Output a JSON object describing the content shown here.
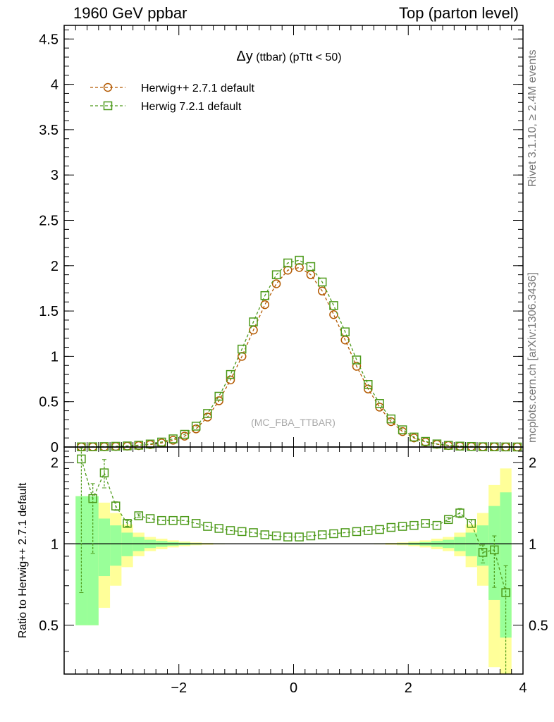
{
  "header": {
    "left": "1960 GeV ppbar",
    "right": "Top (parton level)"
  },
  "side_labels": {
    "rivet": "Rivet 3.1.10, ≥ 2.4M events",
    "mcplots": "mcplots.cern.ch [arXiv:1306.3436]"
  },
  "plot": {
    "title_symbol": "Δy",
    "title_rest": " (ttbar) (pTtt < 50)",
    "watermark": "(MC_FBA_TTBAR)",
    "ratio_ylabel": "Ratio to Herwig++ 2.7.1 default"
  },
  "colors": {
    "herwigpp": "#b35900",
    "herwig7": "#4d9a1a",
    "band_outer": "#ffff99",
    "band_inner": "#99ff99"
  },
  "chart_data": [
    {
      "type": "line",
      "title": "Δy (ttbar) (pTtt < 50)",
      "xlim": [
        -4,
        4
      ],
      "ylim": [
        0,
        4.65
      ],
      "yticks": [
        "0",
        "0.5",
        "1",
        "1.5",
        "2",
        "2.5",
        "3",
        "3.5",
        "4",
        "4.5"
      ],
      "legend_position": "top-left",
      "x": [
        -3.7,
        -3.5,
        -3.3,
        -3.1,
        -2.9,
        -2.7,
        -2.5,
        -2.3,
        -2.1,
        -1.9,
        -1.7,
        -1.5,
        -1.3,
        -1.1,
        -0.9,
        -0.7,
        -0.5,
        -0.3,
        -0.1,
        0.1,
        0.3,
        0.5,
        0.7,
        0.9,
        1.1,
        1.3,
        1.5,
        1.7,
        1.9,
        2.1,
        2.3,
        2.5,
        2.7,
        2.9,
        3.1,
        3.3,
        3.5,
        3.7,
        3.9
      ],
      "series": [
        {
          "name": "Herwig++ 2.7.1 default",
          "marker": "circle",
          "values": [
            0.001,
            0.002,
            0.003,
            0.006,
            0.01,
            0.016,
            0.027,
            0.045,
            0.075,
            0.12,
            0.2,
            0.33,
            0.51,
            0.74,
            1.0,
            1.29,
            1.57,
            1.8,
            1.95,
            1.98,
            1.9,
            1.72,
            1.46,
            1.18,
            0.89,
            0.64,
            0.44,
            0.28,
            0.17,
            0.1,
            0.055,
            0.03,
            0.017,
            0.009,
            0.005,
            0.003,
            0.002,
            0.001,
            0.0005
          ]
        },
        {
          "name": "Herwig 7.2.1 default",
          "marker": "square",
          "values": [
            0.002,
            0.003,
            0.005,
            0.008,
            0.012,
            0.02,
            0.033,
            0.055,
            0.09,
            0.14,
            0.23,
            0.37,
            0.56,
            0.8,
            1.08,
            1.38,
            1.67,
            1.9,
            2.03,
            2.06,
            1.99,
            1.82,
            1.56,
            1.27,
            0.96,
            0.69,
            0.48,
            0.31,
            0.19,
            0.11,
            0.062,
            0.034,
            0.019,
            0.01,
            0.006,
            0.003,
            0.002,
            0.001,
            0.0005
          ]
        }
      ]
    },
    {
      "type": "line",
      "ylabel": "Ratio to Herwig++ 2.7.1 default",
      "xlim": [
        -4,
        4
      ],
      "ylim": [
        0.33,
        2.28
      ],
      "xticks": [
        "−2",
        "0",
        "2",
        "4"
      ],
      "yticks": [
        "0.5",
        "1",
        "2"
      ],
      "x": [
        -3.7,
        -3.5,
        -3.3,
        -3.1,
        -2.9,
        -2.7,
        -2.5,
        -2.3,
        -2.1,
        -1.9,
        -1.7,
        -1.5,
        -1.3,
        -1.1,
        -0.9,
        -0.7,
        -0.5,
        -0.3,
        -0.1,
        0.1,
        0.3,
        0.5,
        0.7,
        0.9,
        1.1,
        1.3,
        1.5,
        1.7,
        1.9,
        2.1,
        2.3,
        2.5,
        2.7,
        2.9,
        3.1,
        3.3,
        3.5,
        3.7
      ],
      "series": [
        {
          "name": "Herwig 7.2.1 default",
          "marker": "square",
          "values": [
            2.06,
            1.47,
            1.83,
            1.38,
            1.19,
            1.27,
            1.24,
            1.22,
            1.22,
            1.22,
            1.19,
            1.16,
            1.14,
            1.12,
            1.11,
            1.1,
            1.08,
            1.07,
            1.06,
            1.06,
            1.07,
            1.08,
            1.09,
            1.1,
            1.11,
            1.12,
            1.13,
            1.15,
            1.16,
            1.17,
            1.19,
            1.17,
            1.23,
            1.3,
            1.19,
            0.93,
            0.95,
            0.66
          ],
          "err_up": [
            0.2,
            0.2,
            0.22,
            0.05,
            0.03,
            0.02,
            0.01,
            0.01,
            0.01,
            0.01,
            0.01,
            0.01,
            0.01,
            0.01,
            0.01,
            0.01,
            0.01,
            0.01,
            0.01,
            0.01,
            0.01,
            0.01,
            0.01,
            0.01,
            0.01,
            0.01,
            0.01,
            0.01,
            0.01,
            0.01,
            0.01,
            0.01,
            0.02,
            0.05,
            0.04,
            0.06,
            0.12,
            0.17
          ],
          "err_dn": [
            1.4,
            0.55,
            0.22,
            0.05,
            0.03,
            0.02,
            0.01,
            0.01,
            0.01,
            0.01,
            0.01,
            0.01,
            0.01,
            0.01,
            0.01,
            0.01,
            0.01,
            0.01,
            0.01,
            0.01,
            0.01,
            0.01,
            0.01,
            0.01,
            0.01,
            0.01,
            0.01,
            0.01,
            0.01,
            0.01,
            0.01,
            0.01,
            0.02,
            0.05,
            0.04,
            0.08,
            0.26,
            0.35
          ]
        }
      ],
      "band_edges": [
        -3.8,
        -3.6,
        -3.4,
        -3.2,
        -3.0,
        -2.8,
        -2.6,
        -2.4,
        -2.2,
        -2.0,
        -1.8,
        -1.6,
        -1.4,
        -1.2,
        -1.0,
        1.0,
        1.2,
        1.4,
        1.6,
        1.8,
        2.0,
        2.2,
        2.4,
        2.6,
        2.8,
        3.0,
        3.2,
        3.4,
        3.6,
        3.8
      ],
      "band_outer": [
        0.5,
        0.5,
        0.42,
        0.3,
        0.18,
        0.1,
        0.06,
        0.045,
        0.03,
        0.02,
        0.012,
        0.008,
        0.005,
        0.003,
        0.002,
        0.002,
        0.003,
        0.005,
        0.008,
        0.012,
        0.02,
        0.03,
        0.045,
        0.06,
        0.1,
        0.18,
        0.3,
        0.65,
        0.9
      ],
      "band_inner": [
        0.5,
        0.5,
        0.24,
        0.17,
        0.1,
        0.06,
        0.035,
        0.025,
        0.015,
        0.01,
        0.006,
        0.004,
        0.003,
        0.002,
        0.001,
        0.001,
        0.002,
        0.003,
        0.004,
        0.006,
        0.01,
        0.015,
        0.025,
        0.035,
        0.06,
        0.1,
        0.17,
        0.38,
        0.55
      ]
    }
  ]
}
